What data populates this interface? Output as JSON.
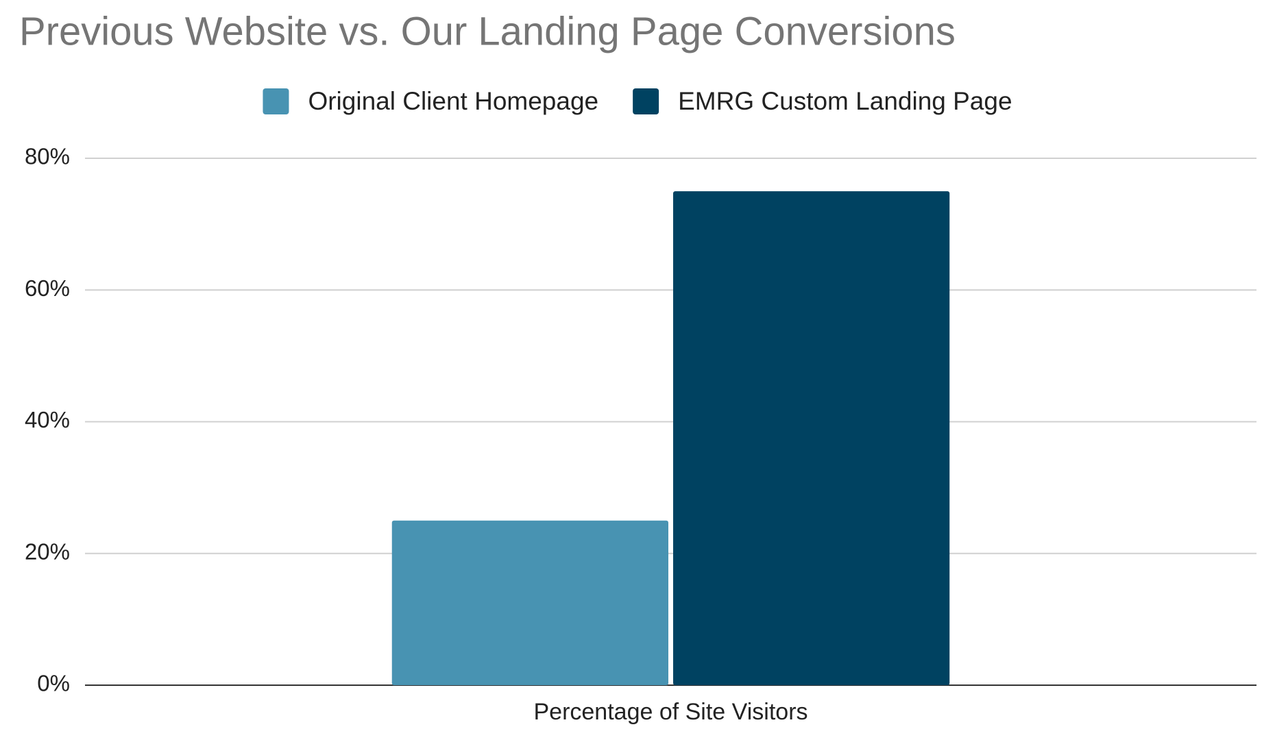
{
  "chart_data": {
    "type": "bar",
    "title": "Previous Website vs. Our Landing Page Conversions",
    "categories": [
      "Percentage of Site Visitors"
    ],
    "series": [
      {
        "name": "Original Client Homepage",
        "color": "#4893b2",
        "values": [
          25
        ]
      },
      {
        "name": "EMRG Custom Landing Page",
        "color": "#004261",
        "values": [
          75
        ]
      }
    ],
    "ylim": [
      0,
      80
    ],
    "yticks": [
      {
        "value": 0,
        "label": "0%"
      },
      {
        "value": 20,
        "label": "20%"
      },
      {
        "value": 40,
        "label": "40%"
      },
      {
        "value": 60,
        "label": "60%"
      },
      {
        "value": 80,
        "label": "80%"
      }
    ],
    "grid": true,
    "legend": "top"
  }
}
